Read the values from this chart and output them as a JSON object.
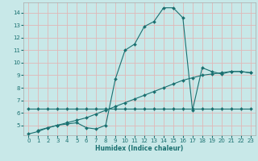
{
  "xlabel": "Humidex (Indice chaleur)",
  "xlim": [
    -0.5,
    23.5
  ],
  "ylim": [
    4.2,
    14.8
  ],
  "yticks": [
    5,
    6,
    7,
    8,
    9,
    10,
    11,
    12,
    13,
    14
  ],
  "xticks": [
    0,
    1,
    2,
    3,
    4,
    5,
    6,
    7,
    8,
    9,
    10,
    11,
    12,
    13,
    14,
    15,
    16,
    17,
    18,
    19,
    20,
    21,
    22,
    23
  ],
  "bg_color": "#c8e8e8",
  "line_color": "#1a7070",
  "grid_color": "#e0b8b8",
  "line1_x": [
    0,
    1,
    2,
    3,
    4,
    5,
    6,
    7,
    8,
    9,
    10,
    11,
    12,
    13,
    14,
    15,
    16,
    17,
    18,
    19,
    20,
    21,
    22,
    23
  ],
  "line1_y": [
    6.3,
    6.3,
    6.3,
    6.3,
    6.3,
    6.3,
    6.3,
    6.3,
    6.3,
    6.3,
    6.3,
    6.3,
    6.3,
    6.3,
    6.3,
    6.3,
    6.3,
    6.3,
    6.3,
    6.3,
    6.3,
    6.3,
    6.3,
    6.3
  ],
  "line2_x": [
    1,
    2,
    3,
    4,
    5,
    6,
    7,
    8,
    9,
    10,
    11,
    12,
    13,
    14,
    15,
    16,
    17,
    18,
    19,
    20,
    21,
    22,
    23
  ],
  "line2_y": [
    4.6,
    4.8,
    5.0,
    5.1,
    5.2,
    4.8,
    4.7,
    5.0,
    8.7,
    11.0,
    11.5,
    12.9,
    13.3,
    14.4,
    14.4,
    13.6,
    6.2,
    9.6,
    9.3,
    9.1,
    9.3,
    9.3,
    9.2
  ],
  "line3_x": [
    0,
    1,
    2,
    3,
    4,
    5,
    6,
    7,
    8,
    9,
    10,
    11,
    12,
    13,
    14,
    15,
    16,
    17,
    18,
    19,
    20,
    21,
    22,
    23
  ],
  "line3_y": [
    4.3,
    4.5,
    4.8,
    5.0,
    5.2,
    5.4,
    5.6,
    5.9,
    6.2,
    6.5,
    6.8,
    7.1,
    7.4,
    7.7,
    8.0,
    8.3,
    8.6,
    8.8,
    9.0,
    9.1,
    9.2,
    9.3,
    9.3,
    9.2
  ]
}
